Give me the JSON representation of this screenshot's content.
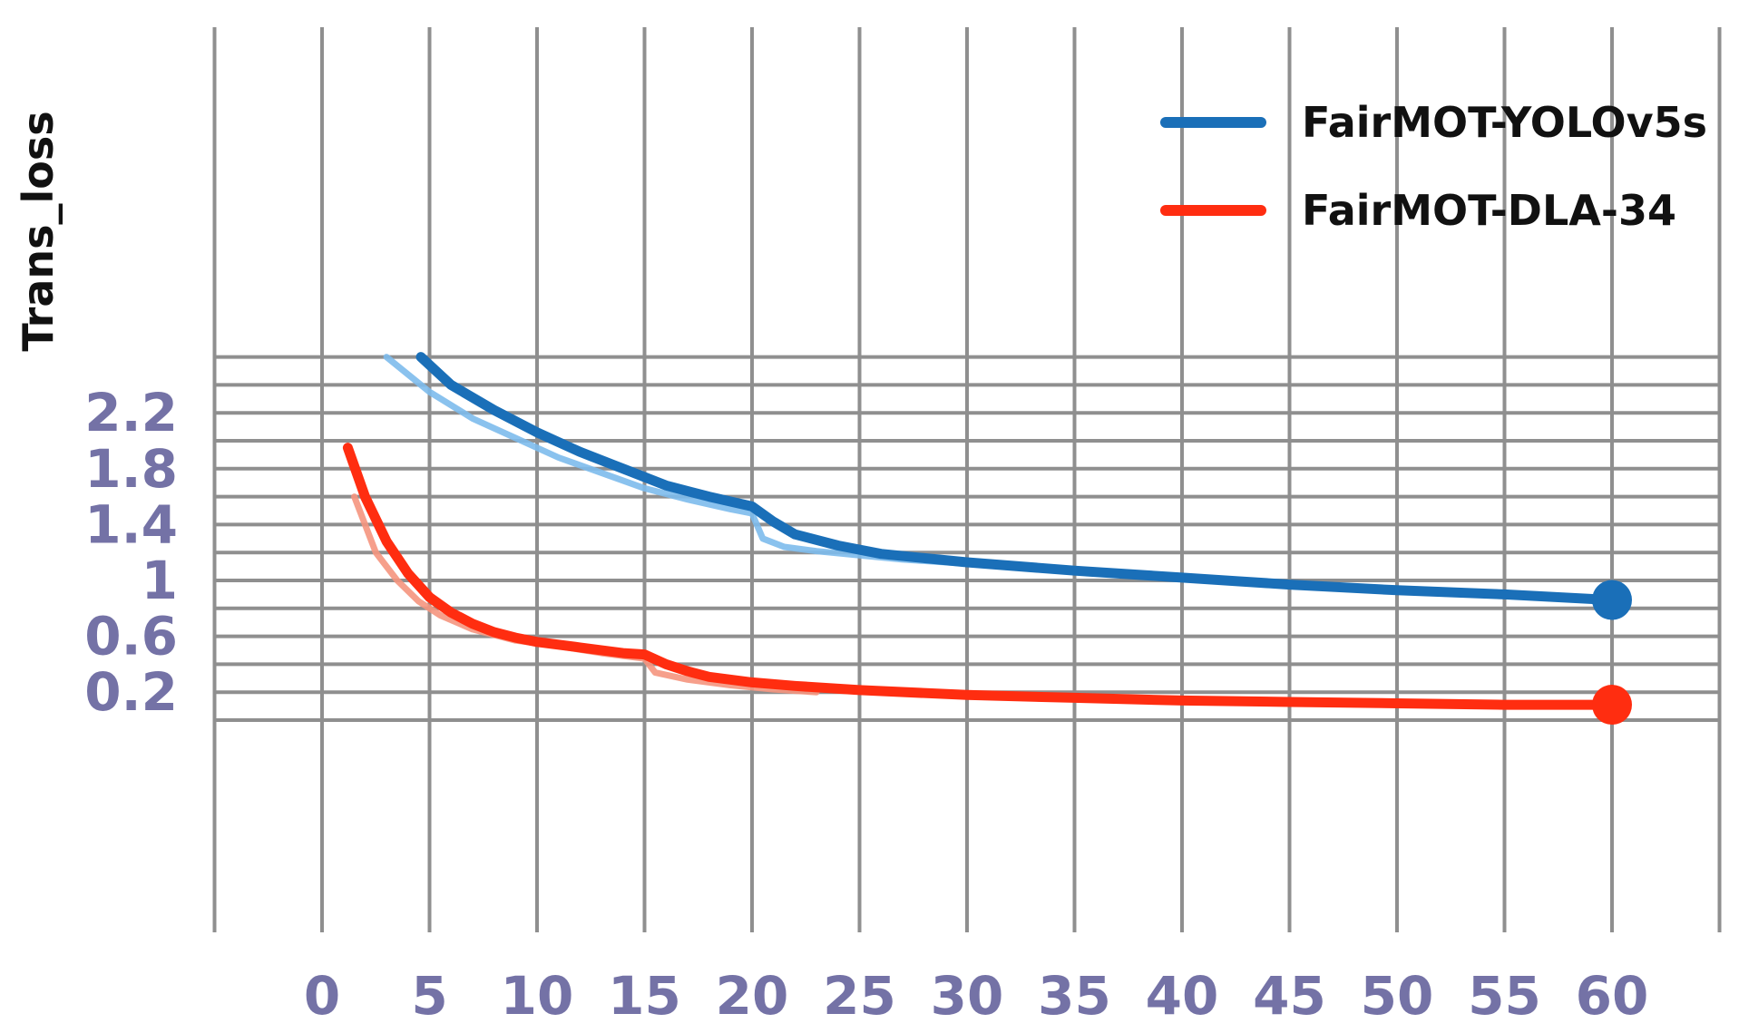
{
  "chart_data": {
    "type": "line",
    "title": "",
    "xlabel": "",
    "ylabel": "Trans_loss",
    "xlim": [
      -5,
      65
    ],
    "ylim": [
      0.05,
      2.6
    ],
    "x_ticks": [
      0,
      5,
      10,
      15,
      20,
      25,
      30,
      35,
      40,
      45,
      50,
      55,
      60
    ],
    "x_tick_labels": [
      "0",
      "5",
      "10",
      "15",
      "20",
      "25",
      "30",
      "35",
      "40",
      "45",
      "50",
      "55",
      "60"
    ],
    "y_ticks": [
      0.2,
      0.6,
      1,
      1.4,
      1.8,
      2.2
    ],
    "y_tick_labels": [
      "0.2",
      "0.6",
      "1",
      "1.4",
      "1.8",
      "2.2"
    ],
    "grid": true,
    "legend_position": "top-right",
    "series": [
      {
        "name": "FairMOT-YOLOv5s",
        "color": "#1a6fb8",
        "light_color": "#7dbbec",
        "x": [
          4.6,
          6,
          8,
          10,
          12,
          14,
          16,
          18,
          20,
          21,
          22,
          24,
          26,
          28,
          30,
          35,
          40,
          45,
          50,
          55,
          60
        ],
        "y": [
          2.6,
          2.4,
          2.22,
          2.06,
          1.92,
          1.8,
          1.68,
          1.6,
          1.53,
          1.42,
          1.33,
          1.25,
          1.19,
          1.16,
          1.13,
          1.07,
          1.02,
          0.97,
          0.93,
          0.9,
          0.86
        ],
        "light_x": [
          3,
          5,
          7,
          9,
          11,
          13,
          15,
          17,
          19,
          20,
          20.5,
          21.5,
          23,
          25,
          27,
          30
        ],
        "light_y": [
          2.6,
          2.35,
          2.16,
          2.02,
          1.88,
          1.77,
          1.66,
          1.58,
          1.51,
          1.48,
          1.3,
          1.24,
          1.21,
          1.18,
          1.15,
          1.12
        ],
        "end_marker_x": 60,
        "end_marker_y": 0.86
      },
      {
        "name": "FairMOT-DLA-34",
        "color": "#ff2d10",
        "light_color": "#f5957e",
        "x": [
          1.2,
          2,
          3,
          4,
          5,
          6,
          7,
          8,
          9,
          10,
          12,
          14,
          15,
          16,
          17,
          18,
          20,
          22,
          25,
          30,
          35,
          40,
          45,
          50,
          55,
          60
        ],
        "y": [
          1.95,
          1.6,
          1.28,
          1.05,
          0.88,
          0.77,
          0.69,
          0.63,
          0.59,
          0.56,
          0.52,
          0.48,
          0.47,
          0.4,
          0.35,
          0.31,
          0.27,
          0.245,
          0.215,
          0.18,
          0.16,
          0.14,
          0.13,
          0.12,
          0.11,
          0.11
        ],
        "light_x": [
          1.5,
          2.5,
          3.5,
          4.5,
          5.5,
          7,
          9,
          11,
          13,
          15,
          15.5,
          17,
          19,
          21,
          23
        ],
        "light_y": [
          1.6,
          1.2,
          1.0,
          0.85,
          0.75,
          0.65,
          0.57,
          0.53,
          0.48,
          0.44,
          0.34,
          0.29,
          0.25,
          0.22,
          0.2
        ],
        "end_marker_x": 60,
        "end_marker_y": 0.11
      }
    ]
  }
}
